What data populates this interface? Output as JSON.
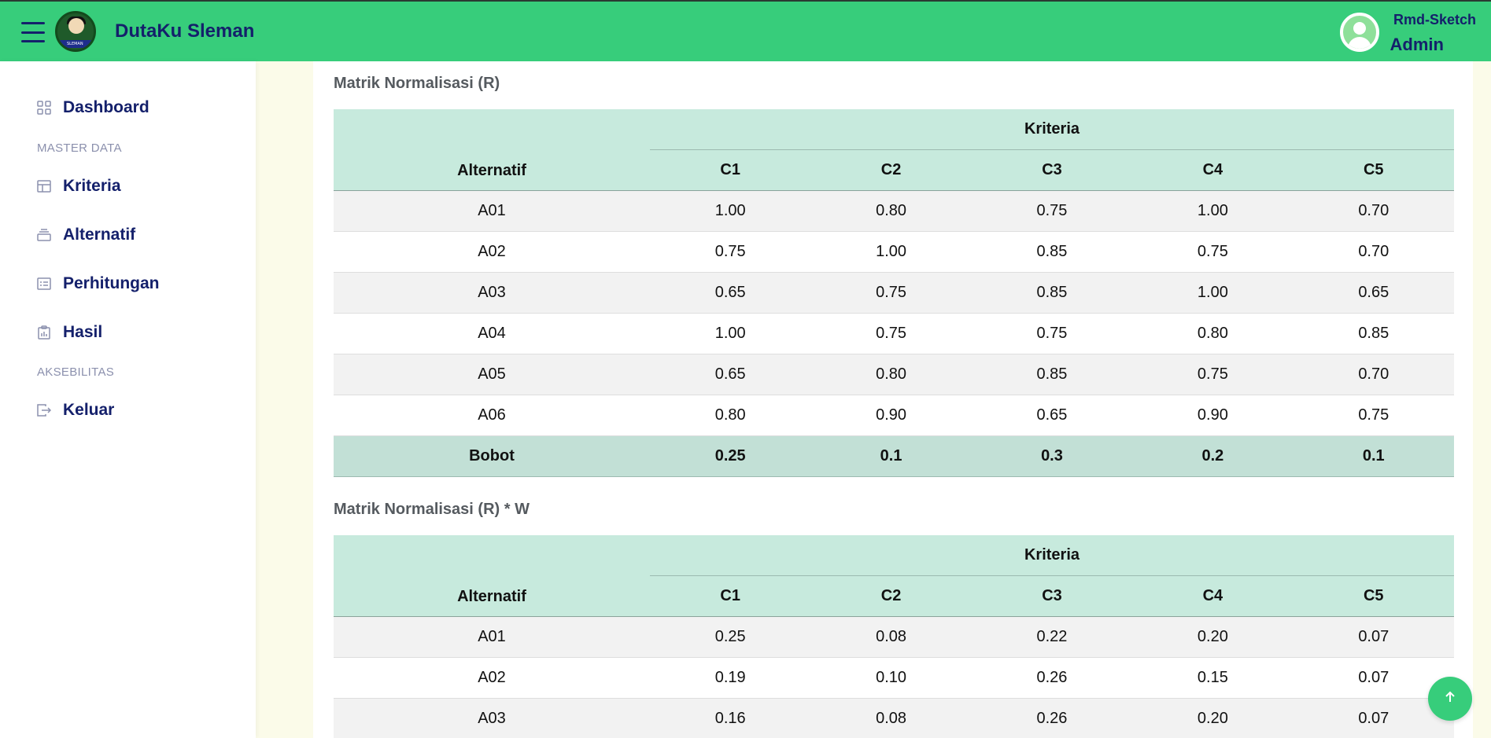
{
  "header": {
    "brand": "DutaKu Sleman",
    "logo_text": "SLEMAN",
    "user_name": "Rmd-Sketch",
    "user_role": "Admin",
    "accent_color": "#37cd7b",
    "text_color": "#14206b"
  },
  "sidebar": {
    "dashboard": "Dashboard",
    "section_master": "MASTER DATA",
    "kriteria": "Kriteria",
    "alternatif": "Alternatif",
    "perhitungan": "Perhitungan",
    "hasil": "Hasil",
    "section_akses": "AKSEBILITAS",
    "keluar": "Keluar"
  },
  "table1": {
    "title": "Matrik Normalisasi (R)",
    "header_alt": "Alternatif",
    "header_kriteria": "Kriteria",
    "columns": [
      "C1",
      "C2",
      "C3",
      "C4",
      "C5"
    ],
    "rows": [
      {
        "alt": "A01",
        "values": [
          "1.00",
          "0.80",
          "0.75",
          "1.00",
          "0.70"
        ]
      },
      {
        "alt": "A02",
        "values": [
          "0.75",
          "1.00",
          "0.85",
          "0.75",
          "0.70"
        ]
      },
      {
        "alt": "A03",
        "values": [
          "0.65",
          "0.75",
          "0.85",
          "1.00",
          "0.65"
        ]
      },
      {
        "alt": "A04",
        "values": [
          "1.00",
          "0.75",
          "0.75",
          "0.80",
          "0.85"
        ]
      },
      {
        "alt": "A05",
        "values": [
          "0.65",
          "0.80",
          "0.85",
          "0.75",
          "0.70"
        ]
      },
      {
        "alt": "A06",
        "values": [
          "0.80",
          "0.90",
          "0.65",
          "0.90",
          "0.75"
        ]
      }
    ],
    "bobot_label": "Bobot",
    "bobot": [
      "0.25",
      "0.1",
      "0.3",
      "0.2",
      "0.1"
    ]
  },
  "table2": {
    "title": "Matrik Normalisasi (R) * W",
    "header_alt": "Alternatif",
    "header_kriteria": "Kriteria",
    "columns": [
      "C1",
      "C2",
      "C3",
      "C4",
      "C5"
    ],
    "rows": [
      {
        "alt": "A01",
        "values": [
          "0.25",
          "0.08",
          "0.22",
          "0.20",
          "0.07"
        ]
      },
      {
        "alt": "A02",
        "values": [
          "0.19",
          "0.10",
          "0.26",
          "0.15",
          "0.07"
        ]
      },
      {
        "alt": "A03",
        "values": [
          "0.16",
          "0.08",
          "0.26",
          "0.20",
          "0.07"
        ]
      }
    ]
  }
}
